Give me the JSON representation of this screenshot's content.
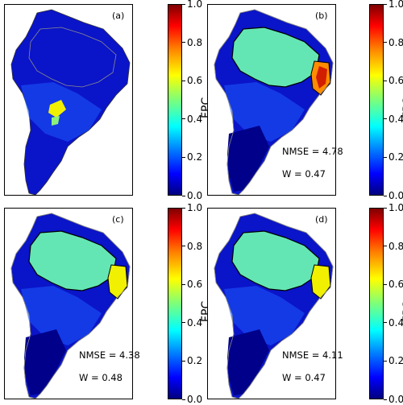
{
  "chart_data": [
    {
      "type": "heatmap",
      "panel_label": "(a)",
      "colorbar": {
        "label": "FPC",
        "ticks": [
          "0.0",
          "0.2",
          "0.4",
          "0.6",
          "0.8",
          "1.0"
        ],
        "range": [
          0.0,
          1.0
        ],
        "colormap": "jet"
      },
      "stats": null
    },
    {
      "type": "heatmap",
      "panel_label": "(b)",
      "colorbar": {
        "label": "FPC",
        "ticks": [
          "0.0",
          "0.2",
          "0.4",
          "0.6",
          "0.8",
          "1.0"
        ],
        "range": [
          0.0,
          1.0
        ],
        "colormap": "jet"
      },
      "stats": {
        "nmse_text": "NMSE = 4.78",
        "w_text": "W = 0.47",
        "nmse": 4.78,
        "w": 0.47
      }
    },
    {
      "type": "heatmap",
      "panel_label": "(c)",
      "colorbar": {
        "label": "FPC",
        "ticks": [
          "0.0",
          "0.2",
          "0.4",
          "0.6",
          "0.8",
          "1.0"
        ],
        "range": [
          0.0,
          1.0
        ],
        "colormap": "jet"
      },
      "stats": {
        "nmse_text": "NMSE = 4.38",
        "w_text": "W = 0.48",
        "nmse": 4.38,
        "w": 0.48
      }
    },
    {
      "type": "heatmap",
      "panel_label": "(d)",
      "colorbar": {
        "label": "FPC",
        "ticks": [
          "0.0",
          "0.2",
          "0.4",
          "0.6",
          "0.8",
          "1.0"
        ],
        "range": [
          0.0,
          1.0
        ],
        "colormap": "jet"
      },
      "stats": {
        "nmse_text": "NMSE = 4.11",
        "w_text": "W = 0.47",
        "nmse": 4.11,
        "w": 0.47
      }
    }
  ],
  "colors": {
    "deep_blue": "#0a14c8",
    "mid_blue": "#1e5aff",
    "cyan_green": "#64e6b4",
    "yellow": "#f0f000",
    "orange": "#ff8c00",
    "red": "#d21e00",
    "outline": "#8c8c8c",
    "biome_line": "#000000"
  }
}
